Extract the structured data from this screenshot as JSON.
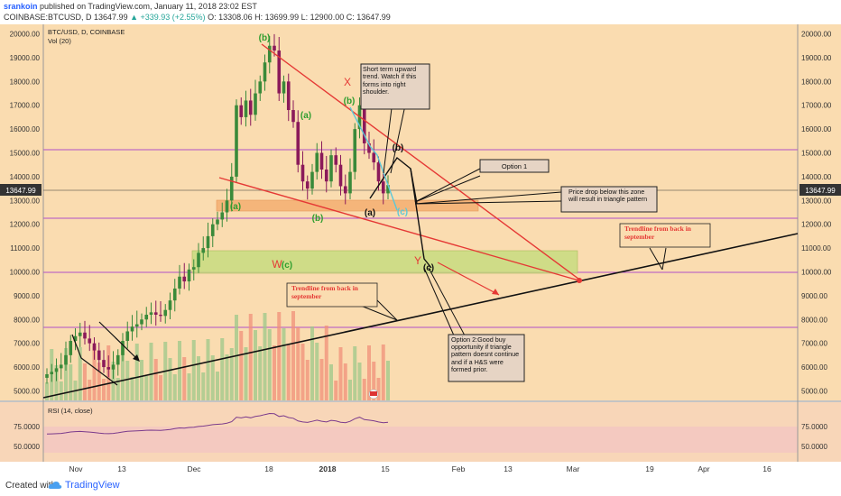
{
  "header": {
    "author": "srankoin",
    "published": "published on TradingView.com, January 11, 2018 23:02 EST",
    "symbol": "COINBASE:BTCUSD, D",
    "last": "13647.99",
    "change": "▲ +339.93 (+2.55%)",
    "ohlc": "O: 13308.06  H: 13699.99  L: 12900.00  C: 13647.99"
  },
  "legend": {
    "title": "BTC/USD, D, COINBASE",
    "vol": "Vol (20)",
    "rsi": "RSI (14, close)"
  },
  "footer": {
    "created": "Created with",
    "brand": "TradingView"
  },
  "price_badge": "13647.99",
  "colors": {
    "panel_bg": "#fadcb0",
    "up": "#3a8a3a",
    "down": "#8b1a5a",
    "accent_red": "#e53935",
    "label_green": "#2e9d2e"
  },
  "chart_data": {
    "type": "candlestick",
    "price_axis": {
      "min": 4600,
      "max": 20400,
      "ticks": [
        "20000.00",
        "19000.00",
        "18000.00",
        "17000.00",
        "16000.00",
        "15000.00",
        "14000.00",
        "13000.00",
        "12000.00",
        "11000.00",
        "10000.00",
        "9000.00",
        "8000.00",
        "7000.00",
        "6000.00",
        "5000.00"
      ]
    },
    "rsi_axis": {
      "ticks": [
        "75.0000",
        "50.0000"
      ],
      "right_ticks": [
        "75.0000",
        "50.0000"
      ]
    },
    "time_axis": {
      "ticks": [
        "Nov",
        "13",
        "Dec",
        "18",
        "2018",
        "15",
        "Feb",
        "13",
        "Mar",
        "19",
        "Apr",
        "16"
      ]
    },
    "ohlc_close_series": [
      5700,
      5800,
      5950,
      6100,
      6500,
      7100,
      7300,
      7450,
      7200,
      7000,
      6700,
      6300,
      6000,
      5900,
      6100,
      6500,
      7100,
      7500,
      7700,
      7800,
      8000,
      8200,
      8300,
      8200,
      8150,
      8400,
      8800,
      9300,
      9800,
      9600,
      10100,
      10200,
      10800,
      11000,
      11500,
      12000,
      12200,
      12500,
      13000,
      14000,
      17000,
      16500,
      17200,
      16600,
      17500,
      18000,
      18800,
      19500,
      19300,
      17500,
      18000,
      16800,
      16300,
      14500,
      13800,
      13500,
      14200,
      15000,
      14300,
      13800,
      14900,
      14500,
      13600,
      13300,
      14200,
      16000,
      17000,
      15400,
      15000,
      14600,
      13800,
      13300,
      13647.99
    ],
    "annotations": [
      {
        "text": "Short term upward trend.  Watch if this forms into right shoulder."
      },
      {
        "text": "Option 1"
      },
      {
        "text": "Price drop below this zone will result in triangle pattern"
      },
      {
        "text": "Trendline from back in september"
      },
      {
        "text": "Trendline from back in september"
      },
      {
        "text": "Option 2:Good buy opportunity if triangle pattern doesnt continue and if a H&S were formed prior."
      }
    ],
    "wave_labels": [
      "(b)",
      "(a)",
      "(b)",
      "(a)",
      "(b)",
      "X",
      "(a)",
      "(b)",
      "(c)",
      "W",
      "(c)",
      "Y",
      "(c)"
    ]
  }
}
